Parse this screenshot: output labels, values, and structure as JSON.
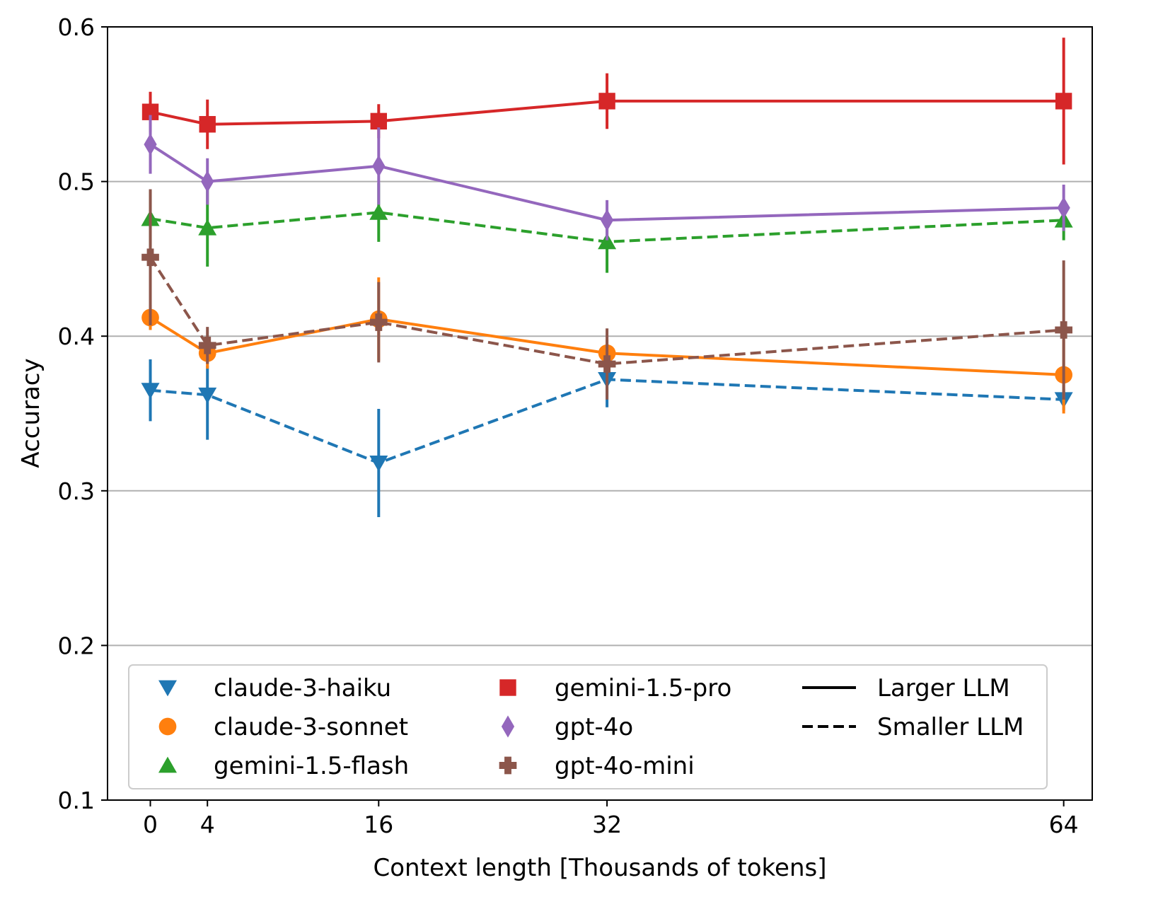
{
  "chart_data": {
    "type": "line",
    "title": "",
    "xlabel": "Context length [Thousands of tokens]",
    "ylabel": "Accuracy",
    "x": [
      0,
      4,
      16,
      32,
      64
    ],
    "xlim": [
      -3,
      66
    ],
    "ylim": [
      0.1,
      0.6
    ],
    "xticks": [
      0,
      4,
      16,
      32,
      64
    ],
    "yticks": [
      0.1,
      0.2,
      0.3,
      0.4,
      0.5,
      0.6
    ],
    "xtick_labels": [
      "0",
      "4",
      "16",
      "32",
      "64"
    ],
    "ytick_labels": [
      "0.1",
      "0.2",
      "0.3",
      "0.4",
      "0.5",
      "0.6"
    ],
    "grid": "y-major",
    "legend_position": "lower-left",
    "series": [
      {
        "name": "claude-3-haiku",
        "color": "#1f77b4",
        "marker": "triangle-down",
        "linestyle": "dashed",
        "values": [
          0.365,
          0.362,
          0.318,
          0.372,
          0.359
        ],
        "err_low": [
          0.345,
          0.333,
          0.283,
          0.354,
          0.352
        ],
        "err_high": [
          0.385,
          0.381,
          0.353,
          0.39,
          0.366
        ]
      },
      {
        "name": "claude-3-sonnet",
        "color": "#ff7f0e",
        "marker": "circle",
        "linestyle": "solid",
        "values": [
          0.412,
          0.389,
          0.411,
          0.389,
          0.375
        ],
        "err_low": [
          0.404,
          0.379,
          0.384,
          0.38,
          0.35
        ],
        "err_high": [
          0.42,
          0.399,
          0.438,
          0.398,
          0.398
        ]
      },
      {
        "name": "gemini-1.5-flash",
        "color": "#2ca02c",
        "marker": "triangle-up",
        "linestyle": "dashed",
        "values": [
          0.476,
          0.47,
          0.48,
          0.461,
          0.475
        ],
        "err_low": [
          0.458,
          0.445,
          0.461,
          0.441,
          0.462
        ],
        "err_high": [
          0.494,
          0.495,
          0.499,
          0.481,
          0.488
        ]
      },
      {
        "name": "gemini-1.5-pro",
        "color": "#d62728",
        "marker": "square",
        "linestyle": "solid",
        "values": [
          0.545,
          0.537,
          0.539,
          0.552,
          0.552
        ],
        "err_low": [
          0.532,
          0.521,
          0.528,
          0.534,
          0.511
        ],
        "err_high": [
          0.558,
          0.553,
          0.55,
          0.57,
          0.593
        ]
      },
      {
        "name": "gpt-4o",
        "color": "#9467bd",
        "marker": "diamond",
        "linestyle": "solid",
        "values": [
          0.524,
          0.5,
          0.51,
          0.475,
          0.483
        ],
        "err_low": [
          0.505,
          0.485,
          0.485,
          0.462,
          0.468
        ],
        "err_high": [
          0.543,
          0.515,
          0.535,
          0.488,
          0.498
        ]
      },
      {
        "name": "gpt-4o-mini",
        "color": "#8c564b",
        "marker": "plus",
        "linestyle": "dashed",
        "values": [
          0.451,
          0.394,
          0.409,
          0.382,
          0.404
        ],
        "err_low": [
          0.407,
          0.382,
          0.383,
          0.359,
          0.359
        ],
        "err_high": [
          0.495,
          0.406,
          0.435,
          0.405,
          0.449
        ]
      }
    ],
    "style_legend": [
      {
        "label": "Larger LLM",
        "linestyle": "solid"
      },
      {
        "label": "Smaller LLM",
        "linestyle": "dashed"
      }
    ]
  }
}
